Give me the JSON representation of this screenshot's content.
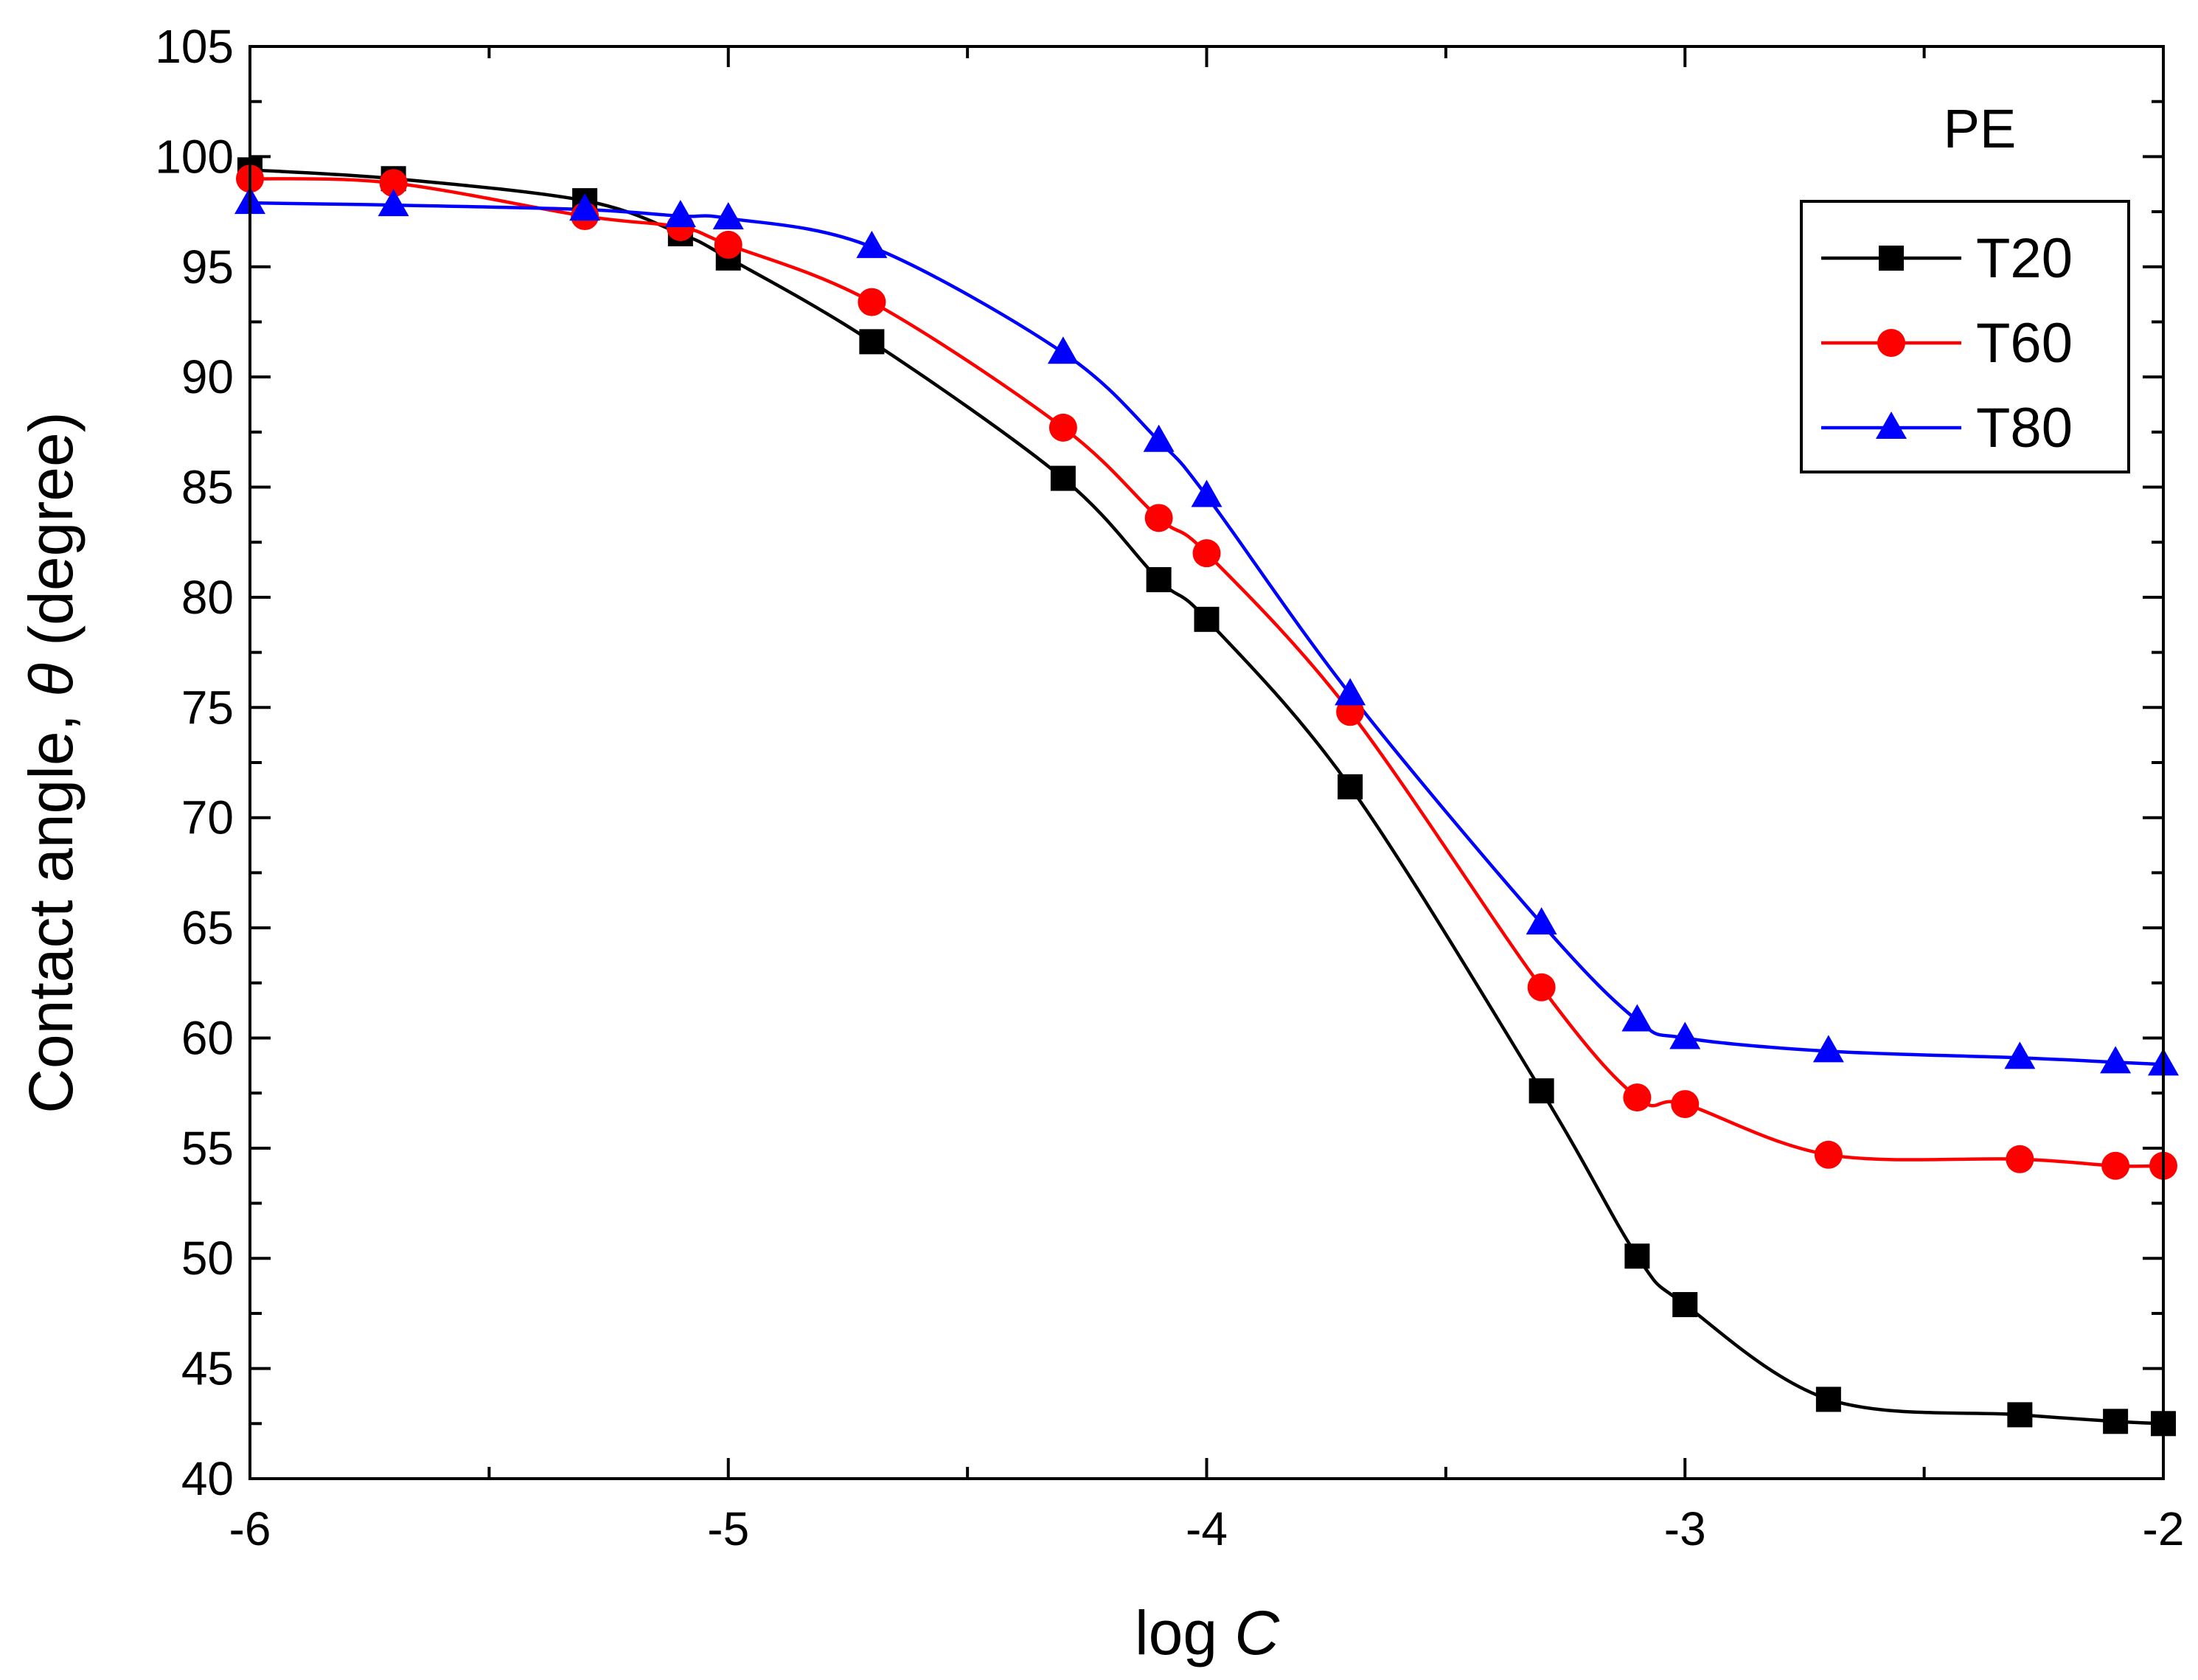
{
  "chart_data": {
    "type": "line",
    "annotation": "PE",
    "xlabel_prefix": "log ",
    "xlabel_var": "C",
    "ylabel_prefix": "Contact angle, ",
    "ylabel_var": "θ",
    "ylabel_suffix": "  (degree)",
    "xlim": [
      -6,
      -2
    ],
    "ylim": [
      40,
      105
    ],
    "xticks": [
      -6,
      -5,
      -4,
      -3,
      -2
    ],
    "xtick_labels": [
      "-6",
      "-5",
      "-4",
      "-3",
      "-2"
    ],
    "yticks": [
      40,
      45,
      50,
      55,
      60,
      65,
      70,
      75,
      80,
      85,
      90,
      95,
      100,
      105
    ],
    "ytick_labels": [
      "40",
      "45",
      "50",
      "55",
      "60",
      "65",
      "70",
      "75",
      "80",
      "85",
      "90",
      "95",
      "100",
      "105"
    ],
    "grid": false,
    "legend_position": "top-right",
    "series": [
      {
        "name": "T20",
        "color": "#000000",
        "marker": "square",
        "x": [
          -6.0,
          -5.7,
          -5.3,
          -5.1,
          -5.0,
          -4.7,
          -4.3,
          -4.1,
          -4.0,
          -3.7,
          -3.3,
          -3.1,
          -3.0,
          -2.7,
          -2.3,
          -2.1,
          -2.0
        ],
        "y": [
          99.4,
          99.0,
          98.0,
          96.5,
          95.4,
          91.6,
          85.4,
          80.8,
          79.0,
          71.4,
          57.6,
          50.1,
          47.9,
          43.6,
          42.9,
          42.6,
          42.5
        ]
      },
      {
        "name": "T60",
        "color": "#ff0000",
        "marker": "circle",
        "x": [
          -6.0,
          -5.7,
          -5.3,
          -5.1,
          -5.0,
          -4.7,
          -4.3,
          -4.1,
          -4.0,
          -3.7,
          -3.3,
          -3.1,
          -3.0,
          -2.7,
          -2.3,
          -2.1,
          -2.0
        ],
        "y": [
          99.0,
          98.8,
          97.3,
          96.8,
          96.0,
          93.4,
          87.7,
          83.6,
          82.0,
          74.8,
          62.3,
          57.3,
          57.0,
          54.7,
          54.5,
          54.2,
          54.2
        ]
      },
      {
        "name": "T80",
        "color": "#0000ff",
        "marker": "triangle",
        "x": [
          -6.0,
          -5.7,
          -5.3,
          -5.1,
          -5.0,
          -4.7,
          -4.3,
          -4.1,
          -4.0,
          -3.7,
          -3.3,
          -3.1,
          -3.0,
          -2.7,
          -2.3,
          -2.1,
          -2.0
        ],
        "y": [
          97.9,
          97.8,
          97.6,
          97.3,
          97.2,
          95.9,
          91.1,
          87.1,
          84.6,
          75.6,
          65.2,
          60.8,
          60.0,
          59.4,
          59.1,
          58.9,
          58.8
        ]
      }
    ]
  }
}
